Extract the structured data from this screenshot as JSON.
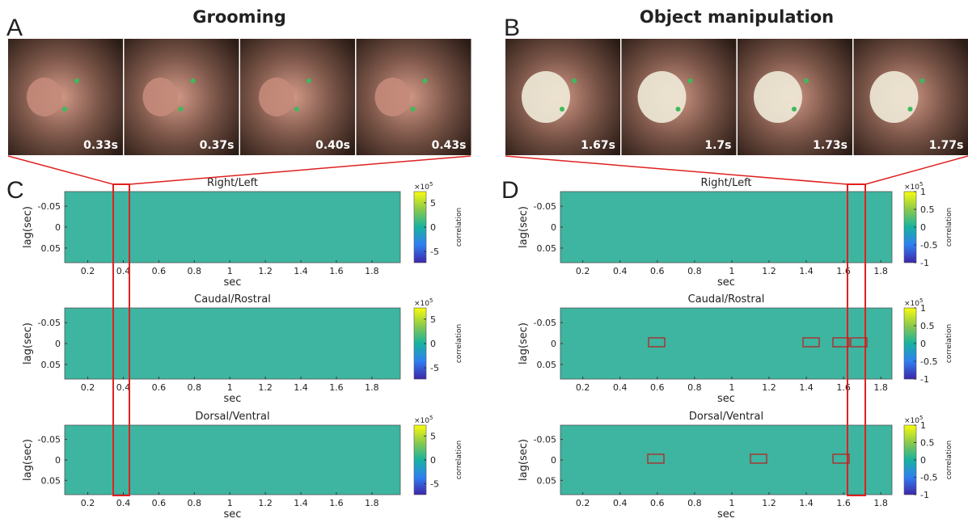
{
  "panels": [
    {
      "letter": "A",
      "title": "Grooming",
      "frames": [
        "0.33s",
        "0.37s",
        "0.40s",
        "0.43s"
      ]
    },
    {
      "letter": "B",
      "title": "Object manipulation",
      "frames": [
        "1.67s",
        "1.7s",
        "1.73s",
        "1.77s"
      ]
    },
    {
      "letter": "C",
      "plots": [
        "Right/Left",
        "Caudal/Rostral",
        "Dorsal/Ventral"
      ],
      "xlim": [
        0.07,
        1.96
      ],
      "ylim": [
        -0.085,
        0.085
      ],
      "xticks": [
        0.2,
        0.4,
        0.6,
        0.8,
        1,
        1.2,
        1.4,
        1.6,
        1.8
      ],
      "yticks": [
        -0.05,
        0,
        0.05
      ],
      "clim": [
        -7.3,
        7.3
      ],
      "cticks": [
        5,
        0,
        -5
      ]
    },
    {
      "letter": "D",
      "plots": [
        "Right/Left",
        "Caudal/Rostral",
        "Dorsal/Ventral"
      ],
      "xlim": [
        0.08,
        1.86
      ],
      "ylim": [
        -0.085,
        0.085
      ],
      "xticks": [
        0.2,
        0.4,
        0.6,
        0.8,
        1,
        1.2,
        1.4,
        1.6,
        1.8
      ],
      "yticks": [
        -0.05,
        0,
        0.05
      ],
      "clim": [
        -1,
        1
      ],
      "cticks": [
        1,
        0.5,
        0,
        -0.5,
        -1
      ]
    }
  ],
  "axes": {
    "ylabel": "lag(sec)",
    "xlabel": "sec",
    "colorbar_label": "correlation",
    "exponent_base": "×10",
    "exponent_power": "5"
  }
}
